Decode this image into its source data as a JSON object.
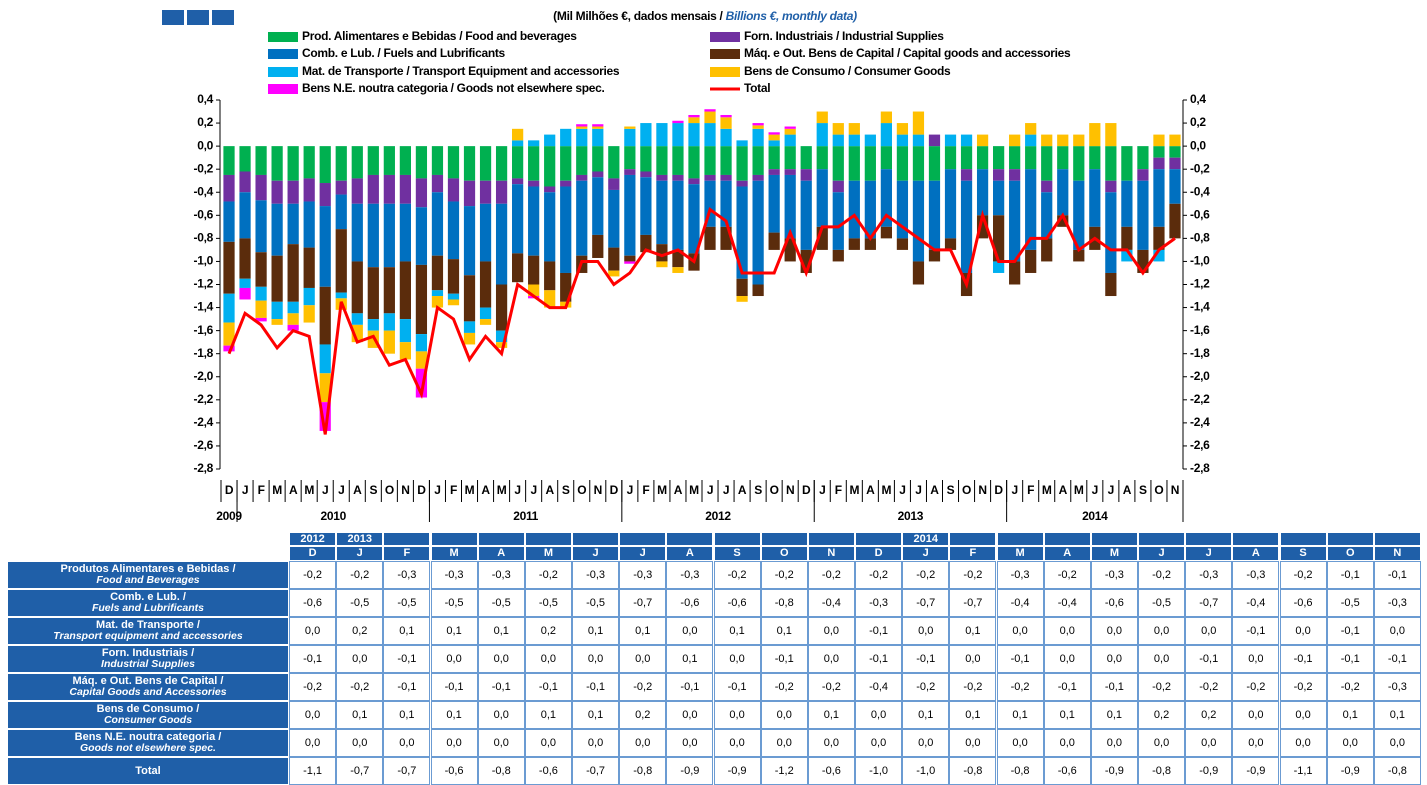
{
  "chart_data": {
    "type": "bar",
    "subtitle_pt": "(Mil Milhões €, dados mensais /",
    "subtitle_en": "Billions €, monthly data)",
    "categories": [
      "D",
      "J",
      "F",
      "M",
      "A",
      "M",
      "J",
      "J",
      "A",
      "S",
      "O",
      "N",
      "D",
      "J",
      "F",
      "M",
      "A",
      "M",
      "J",
      "J",
      "A",
      "S",
      "O",
      "N",
      "D",
      "J",
      "F",
      "M",
      "A",
      "M",
      "J",
      "J",
      "A",
      "S",
      "O",
      "N",
      "D",
      "J",
      "F",
      "M",
      "A",
      "M",
      "J",
      "J",
      "A",
      "S",
      "O",
      "N",
      "D",
      "J",
      "F",
      "M",
      "A",
      "M",
      "J",
      "J",
      "A",
      "S",
      "O",
      "N"
    ],
    "years": [
      "2009",
      "2010",
      "2011",
      "2012",
      "2013",
      "2014"
    ],
    "ylim": [
      -2.8,
      0.4
    ],
    "yticks": [
      {
        "value": 0.4,
        "label": "0,4"
      },
      {
        "value": 0.2,
        "label": "0,2"
      },
      {
        "value": 0,
        "label": "0,0"
      },
      {
        "value": -0.2,
        "label": "-0,2"
      },
      {
        "value": -0.4,
        "label": "-0,4"
      },
      {
        "value": -0.6,
        "label": "-0,6"
      },
      {
        "value": -0.8,
        "label": "-0,8"
      },
      {
        "value": -1,
        "label": "-1,0"
      },
      {
        "value": -1.2,
        "label": "-1,2"
      },
      {
        "value": -1.4,
        "label": "-1,4"
      },
      {
        "value": -1.6,
        "label": "-1,6"
      },
      {
        "value": -1.8,
        "label": "-1,8"
      },
      {
        "value": -2,
        "label": "-2,0"
      },
      {
        "value": -2.2,
        "label": "-2,2"
      },
      {
        "value": -2.4,
        "label": "-2,4"
      },
      {
        "value": -2.6,
        "label": "-2,6"
      },
      {
        "value": -2.8,
        "label": "-2,8"
      }
    ],
    "series": [
      {
        "name": "Prod. Alimentares e Bebidas / Food and beverages",
        "color": "#00b050",
        "values": [
          -0.25,
          -0.22,
          -0.25,
          -0.3,
          -0.3,
          -0.28,
          -0.32,
          -0.3,
          -0.28,
          -0.25,
          -0.25,
          -0.25,
          -0.28,
          -0.25,
          -0.28,
          -0.3,
          -0.3,
          -0.3,
          -0.28,
          -0.3,
          -0.35,
          -0.3,
          -0.25,
          -0.22,
          -0.28,
          -0.2,
          -0.22,
          -0.25,
          -0.25,
          -0.28,
          -0.25,
          -0.25,
          -0.3,
          -0.25,
          -0.2,
          -0.2,
          -0.2,
          -0.2,
          -0.3,
          -0.3,
          -0.3,
          -0.2,
          -0.3,
          -0.3,
          -0.3,
          -0.2,
          -0.2,
          -0.2,
          -0.2,
          -0.2,
          -0.2,
          -0.3,
          -0.2,
          -0.3,
          -0.2,
          -0.3,
          -0.3,
          -0.2,
          -0.1,
          -0.1
        ]
      },
      {
        "name": "Forn. Industriais / Industrial Supplies",
        "color": "#7030a0",
        "values": [
          -0.23,
          -0.18,
          -0.22,
          -0.2,
          -0.2,
          -0.2,
          -0.2,
          -0.12,
          -0.22,
          -0.25,
          -0.25,
          -0.25,
          -0.25,
          -0.15,
          -0.2,
          -0.22,
          -0.2,
          -0.2,
          -0.05,
          -0.05,
          -0.05,
          -0.05,
          -0.05,
          -0.05,
          -0.1,
          -0.05,
          -0.05,
          -0.05,
          -0.05,
          -0.05,
          -0.05,
          -0.05,
          -0.05,
          -0.05,
          -0.05,
          -0.05,
          -0.1,
          0,
          -0.1,
          0,
          0,
          0,
          0,
          0,
          0.1,
          0,
          -0.1,
          0,
          -0.1,
          -0.1,
          0,
          -0.1,
          0,
          0,
          0,
          -0.1,
          0,
          -0.1,
          -0.1,
          -0.1
        ]
      },
      {
        "name": "Comb. e Lub.  /  Fuels and Lubrificants",
        "color": "#0070c0",
        "values": [
          -0.35,
          -0.4,
          -0.45,
          -0.45,
          -0.35,
          -0.4,
          -0.7,
          -0.3,
          -0.5,
          -0.55,
          -0.55,
          -0.5,
          -0.5,
          -0.55,
          -0.5,
          -0.6,
          -0.5,
          -0.7,
          -0.6,
          -0.6,
          -0.6,
          -0.75,
          -0.65,
          -0.5,
          -0.5,
          -0.7,
          -0.5,
          -0.55,
          -0.6,
          -0.6,
          -0.4,
          -0.4,
          -0.8,
          -0.9,
          -0.5,
          -0.55,
          -0.6,
          -0.5,
          -0.5,
          -0.5,
          -0.5,
          -0.5,
          -0.5,
          -0.7,
          -0.6,
          -0.6,
          -0.8,
          -0.4,
          -0.3,
          -0.7,
          -0.7,
          -0.4,
          -0.4,
          -0.6,
          -0.5,
          -0.7,
          -0.4,
          -0.6,
          -0.5,
          -0.3
        ]
      },
      {
        "name": "Máq. e Out. Bens de Capital / Capital goods and accessories",
        "color": "#5b2c0c",
        "values": [
          -0.45,
          -0.35,
          -0.3,
          -0.4,
          -0.5,
          -0.35,
          -0.5,
          -0.55,
          -0.45,
          -0.45,
          -0.4,
          -0.5,
          -0.6,
          -0.3,
          -0.3,
          -0.4,
          -0.4,
          -0.4,
          -0.25,
          -0.25,
          -0.25,
          -0.25,
          -0.15,
          -0.2,
          -0.2,
          -0.05,
          -0.15,
          -0.15,
          -0.15,
          -0.15,
          -0.2,
          -0.2,
          -0.15,
          -0.1,
          -0.15,
          -0.2,
          -0.2,
          -0.2,
          -0.1,
          -0.1,
          -0.1,
          -0.1,
          -0.1,
          -0.2,
          -0.1,
          -0.1,
          -0.2,
          -0.2,
          -0.4,
          -0.2,
          -0.2,
          -0.2,
          -0.1,
          -0.1,
          -0.2,
          -0.2,
          -0.2,
          -0.2,
          -0.2,
          -0.3
        ]
      },
      {
        "name": "Mat. de Transporte / Transport Equipment and accessories",
        "color": "#00b0f0",
        "values": [
          -0.25,
          -0.08,
          -0.12,
          -0.15,
          -0.1,
          -0.15,
          -0.25,
          -0.05,
          -0.1,
          -0.1,
          -0.15,
          -0.2,
          -0.15,
          -0.05,
          -0.05,
          -0.1,
          -0.1,
          -0.1,
          0.05,
          0.05,
          0.1,
          0.15,
          0.15,
          0.15,
          0,
          0.15,
          0.2,
          0.2,
          0.2,
          0.2,
          0.2,
          0.15,
          0.05,
          0.15,
          0.05,
          0.1,
          0,
          0.2,
          0.1,
          0.1,
          0.1,
          0.2,
          0.1,
          0.1,
          0,
          0.1,
          0.1,
          0,
          -0.1,
          0,
          0.1,
          0,
          0,
          0,
          0,
          0,
          -0.1,
          0,
          -0.1,
          0
        ]
      },
      {
        "name": "Bens de Consumo / Consumer Goods",
        "color": "#ffc000",
        "values": [
          -0.2,
          0,
          -0.15,
          -0.05,
          -0.1,
          -0.15,
          -0.25,
          -0.1,
          -0.15,
          -0.15,
          -0.2,
          -0.15,
          -0.15,
          -0.1,
          -0.05,
          -0.1,
          -0.05,
          -0.05,
          0.1,
          -0.1,
          -0.15,
          -0.05,
          0.02,
          0.02,
          -0.05,
          0.02,
          0,
          -0.05,
          -0.05,
          0.05,
          0.1,
          0.1,
          -0.05,
          0.03,
          0.05,
          0.05,
          0,
          0.1,
          0.1,
          0.1,
          0,
          0.1,
          0.1,
          0.2,
          0,
          0,
          0,
          0.1,
          0,
          0.1,
          0.1,
          0.1,
          0.1,
          0.1,
          0.2,
          0.2,
          0,
          0,
          0.1,
          0.1
        ]
      },
      {
        "name": "Bens N.E. noutra categoria / Goods not elsewhere spec.",
        "color": "#ff00ff",
        "values": [
          -0.05,
          -0.1,
          -0.03,
          0,
          -0.05,
          0,
          -0.25,
          0,
          0,
          0,
          0,
          0,
          -0.25,
          0,
          0,
          0,
          0,
          0,
          0,
          -0.02,
          0,
          0,
          0.02,
          0.02,
          0,
          -0.02,
          0,
          0,
          0.02,
          0.02,
          0.02,
          0.02,
          0,
          0.02,
          0.02,
          0.02,
          0,
          0,
          0,
          0,
          0,
          0,
          0,
          0,
          0,
          0,
          0,
          0,
          0,
          0,
          0,
          0,
          0,
          0,
          0,
          0,
          0,
          0,
          0,
          0
        ]
      },
      {
        "name": "Total",
        "color": "#ff0000",
        "type": "line",
        "values": [
          -1.8,
          -1.45,
          -1.55,
          -1.75,
          -1.6,
          -1.65,
          -2.5,
          -1.35,
          -1.7,
          -1.65,
          -1.9,
          -1.85,
          -2.15,
          -1.4,
          -1.5,
          -1.85,
          -1.65,
          -1.8,
          -1.2,
          -1.3,
          -1.4,
          -1.4,
          -1.0,
          -1.0,
          -1.2,
          -1.1,
          -0.9,
          -0.95,
          -0.9,
          -1.0,
          -0.55,
          -0.65,
          -1.1,
          -1.1,
          -1.1,
          -0.75,
          -1.1,
          -0.7,
          -0.7,
          -0.6,
          -0.8,
          -0.6,
          -0.7,
          -0.8,
          -0.9,
          -0.9,
          -1.2,
          -0.6,
          -1.0,
          -1.0,
          -0.8,
          -0.8,
          -0.6,
          -0.9,
          -0.8,
          -0.9,
          -0.9,
          -1.1,
          -0.9,
          -0.8
        ]
      }
    ]
  },
  "table": {
    "header_years": [
      "2012",
      "2013",
      null,
      null,
      null,
      null,
      null,
      null,
      null,
      null,
      null,
      null,
      null,
      "2014",
      null,
      null,
      null,
      null,
      null,
      null,
      null,
      null,
      null,
      null
    ],
    "months": [
      "D",
      "J",
      "F",
      "M",
      "A",
      "M",
      "J",
      "J",
      "A",
      "S",
      "O",
      "N",
      "D",
      "J",
      "F",
      "M",
      "A",
      "M",
      "J",
      "J",
      "A",
      "S",
      "O",
      "N"
    ],
    "rows": [
      {
        "label_pt": "Produtos Alimentares e Bebidas /",
        "label_en": "Food and Beverages",
        "cells": [
          "-0,2",
          "-0,2",
          "-0,3",
          "-0,3",
          "-0,3",
          "-0,2",
          "-0,3",
          "-0,3",
          "-0,3",
          "-0,2",
          "-0,2",
          "-0,2",
          "-0,2",
          "-0,2",
          "-0,2",
          "-0,3",
          "-0,2",
          "-0,3",
          "-0,2",
          "-0,3",
          "-0,3",
          "-0,2",
          "-0,1",
          "-0,1"
        ]
      },
      {
        "label_pt": "Comb. e Lub. /",
        "label_en": "Fuels and Lubrificants",
        "cells": [
          "-0,6",
          "-0,5",
          "-0,5",
          "-0,5",
          "-0,5",
          "-0,5",
          "-0,5",
          "-0,7",
          "-0,6",
          "-0,6",
          "-0,8",
          "-0,4",
          "-0,3",
          "-0,7",
          "-0,7",
          "-0,4",
          "-0,4",
          "-0,6",
          "-0,5",
          "-0,7",
          "-0,4",
          "-0,6",
          "-0,5",
          "-0,3"
        ]
      },
      {
        "label_pt": "Mat. de Transporte /",
        "label_en": "Transport equipment and accessories",
        "cells": [
          "0,0",
          "0,2",
          "0,1",
          "0,1",
          "0,1",
          "0,2",
          "0,1",
          "0,1",
          "0,0",
          "0,1",
          "0,1",
          "0,0",
          "-0,1",
          "0,0",
          "0,1",
          "0,0",
          "0,0",
          "0,0",
          "0,0",
          "0,0",
          "-0,1",
          "0,0",
          "-0,1",
          "0,0"
        ]
      },
      {
        "label_pt": "Forn. Industriais /",
        "label_en": "Industrial Supplies",
        "cells": [
          "-0,1",
          "0,0",
          "-0,1",
          "0,0",
          "0,0",
          "0,0",
          "0,0",
          "0,0",
          "0,1",
          "0,0",
          "-0,1",
          "0,0",
          "-0,1",
          "-0,1",
          "0,0",
          "-0,1",
          "0,0",
          "0,0",
          "0,0",
          "-0,1",
          "0,0",
          "-0,1",
          "-0,1",
          "-0,1"
        ]
      },
      {
        "label_pt": "Máq. e Out. Bens de Capital /",
        "label_en": "Capital Goods and Accessories",
        "cells": [
          "-0,2",
          "-0,2",
          "-0,1",
          "-0,1",
          "-0,1",
          "-0,1",
          "-0,1",
          "-0,2",
          "-0,1",
          "-0,1",
          "-0,2",
          "-0,2",
          "-0,4",
          "-0,2",
          "-0,2",
          "-0,2",
          "-0,1",
          "-0,1",
          "-0,2",
          "-0,2",
          "-0,2",
          "-0,2",
          "-0,2",
          "-0,3"
        ]
      },
      {
        "label_pt": "Bens de Consumo /",
        "label_en": "Consumer Goods",
        "cells": [
          "0,0",
          "0,1",
          "0,1",
          "0,1",
          "0,0",
          "0,1",
          "0,1",
          "0,2",
          "0,0",
          "0,0",
          "0,0",
          "0,1",
          "0,0",
          "0,1",
          "0,1",
          "0,1",
          "0,1",
          "0,1",
          "0,2",
          "0,2",
          "0,0",
          "0,0",
          "0,1",
          "0,1"
        ]
      },
      {
        "label_pt": "Bens N.E. noutra categoria /",
        "label_en": "Goods not elsewhere spec.",
        "cells": [
          "0,0",
          "0,0",
          "0,0",
          "0,0",
          "0,0",
          "0,0",
          "0,0",
          "0,0",
          "0,0",
          "0,0",
          "0,0",
          "0,0",
          "0,0",
          "0,0",
          "0,0",
          "0,0",
          "0,0",
          "0,0",
          "0,0",
          "0,0",
          "0,0",
          "0,0",
          "0,0",
          "0,0"
        ]
      },
      {
        "label_pt": "Total",
        "cells": [
          "-1,1",
          "-0,7",
          "-0,7",
          "-0,6",
          "-0,8",
          "-0,6",
          "-0,7",
          "-0,8",
          "-0,9",
          "-0,9",
          "-1,2",
          "-0,6",
          "-1,0",
          "-1,0",
          "-0,8",
          "-0,8",
          "-0,6",
          "-0,9",
          "-0,8",
          "-0,9",
          "-0,9",
          "-1,1",
          "-0,9",
          "-0,8"
        ]
      }
    ]
  }
}
